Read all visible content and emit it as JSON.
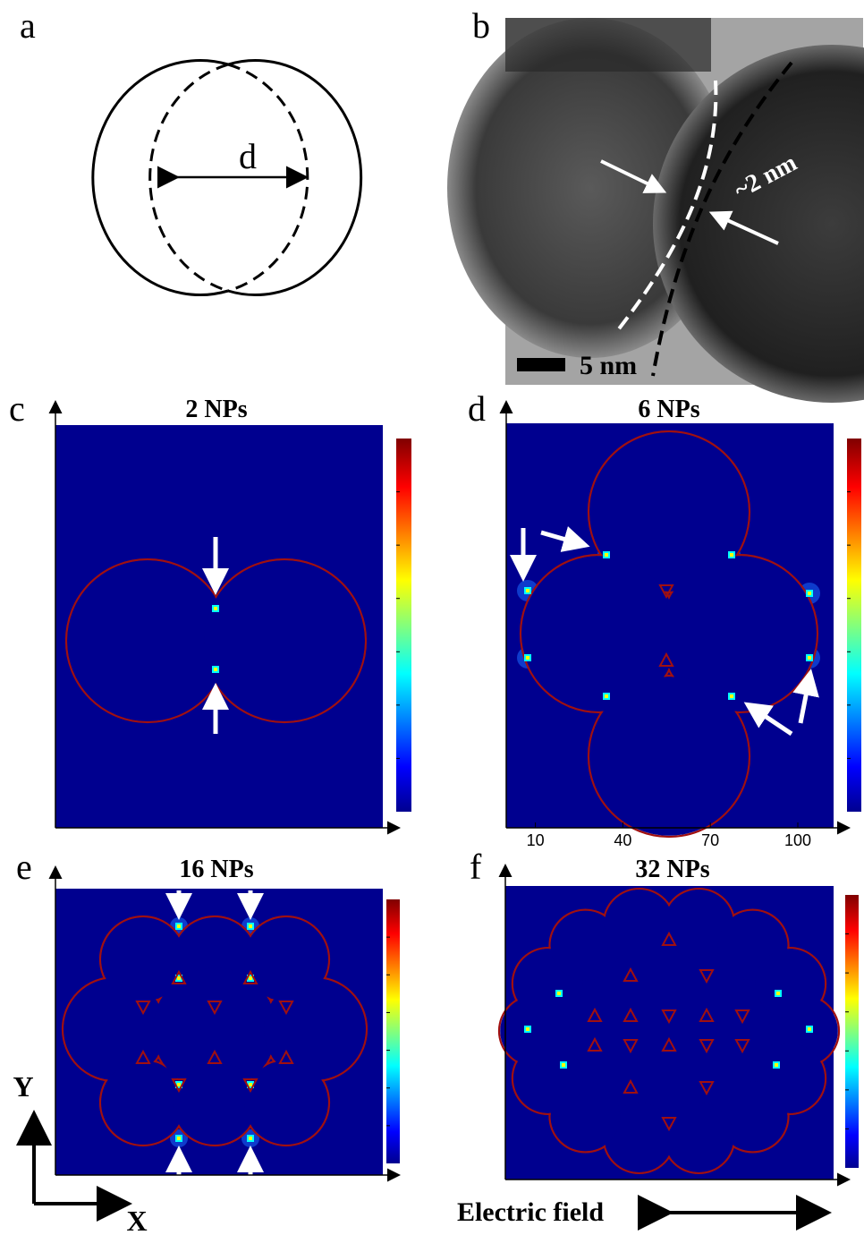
{
  "panels": [
    {
      "label": "a",
      "dimension_label": "d"
    },
    {
      "label": "b",
      "gap_label": "~2 nm",
      "scale_bar": "5 nm"
    },
    {
      "label": "c",
      "title": "2 NPs"
    },
    {
      "label": "d",
      "title": "6 NPs",
      "xticks": [
        10,
        40,
        70,
        100
      ]
    },
    {
      "label": "e",
      "title": "16 NPs"
    },
    {
      "label": "f",
      "title": "32 NPs"
    }
  ],
  "axes": {
    "y": "Y",
    "x": "X"
  },
  "legend": {
    "field_direction": "Electric field"
  }
}
